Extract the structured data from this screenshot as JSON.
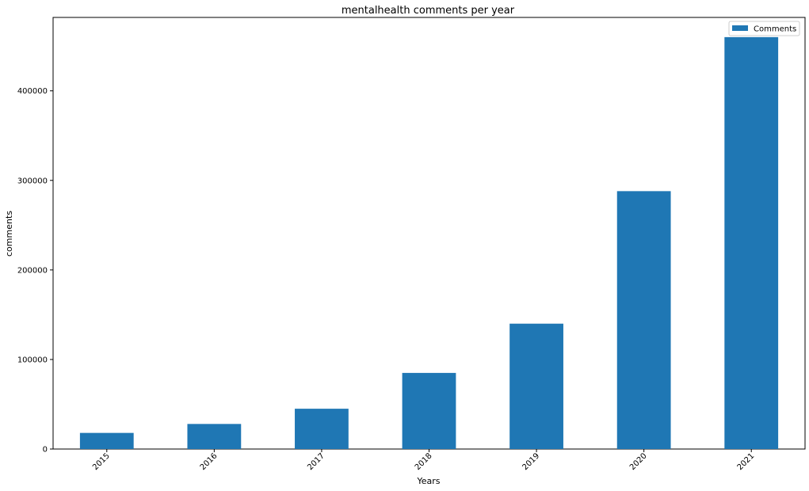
{
  "chart_data": {
    "type": "bar",
    "title": "mentalhealth comments per year",
    "xlabel": "Years",
    "ylabel": "comments",
    "categories": [
      "2015",
      "2016",
      "2017",
      "2018",
      "2019",
      "2020",
      "2021"
    ],
    "series": [
      {
        "name": "Comments",
        "color": "#1f77b4",
        "values": [
          18000,
          28000,
          45000,
          85000,
          140000,
          288000,
          460000
        ]
      }
    ],
    "ylim": [
      0,
      482000
    ],
    "yticks": [
      0,
      100000,
      200000,
      300000,
      400000
    ],
    "ytick_labels": [
      "0",
      "100000",
      "200000",
      "300000",
      "400000"
    ],
    "xtick_rotation": -45,
    "grid": false,
    "legend_position": "top-right"
  }
}
